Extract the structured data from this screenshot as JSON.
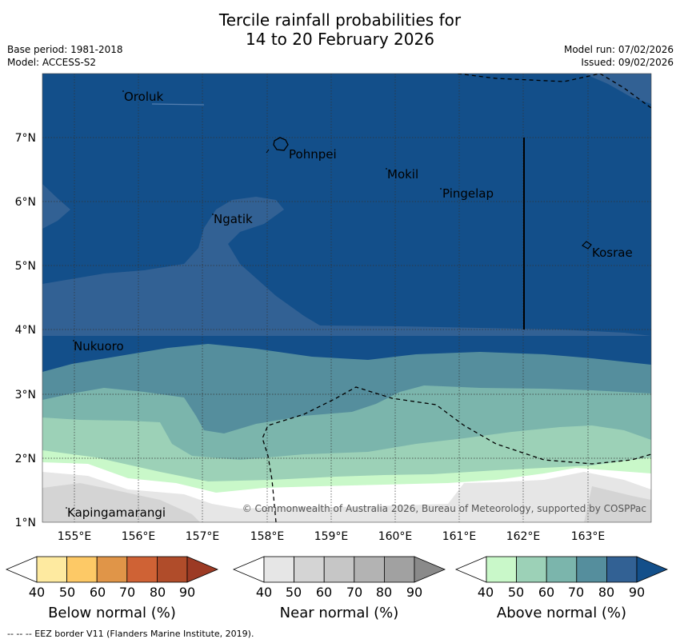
{
  "title": {
    "line1": "Tercile rainfall probabilities for",
    "line2": "14 to 20 February 2026"
  },
  "meta": {
    "base_period": "Base period: 1981-2018",
    "model": "Model: ACCESS-S2",
    "model_run": "Model run: 07/02/2026",
    "issued": "Issued: 09/02/2026"
  },
  "axes": {
    "lon_labels": [
      "155°E",
      "156°E",
      "157°E",
      "158°E",
      "159°E",
      "160°E",
      "161°E",
      "162°E",
      "163°E"
    ],
    "lat_labels": [
      "7°N",
      "6°N",
      "5°N",
      "4°N",
      "3°N",
      "2°N",
      "1°N"
    ]
  },
  "places": [
    {
      "name": "Oroluk"
    },
    {
      "name": "Pohnpei"
    },
    {
      "name": "Mokil"
    },
    {
      "name": "Pingelap"
    },
    {
      "name": "Ngatik"
    },
    {
      "name": "Kosrae"
    },
    {
      "name": "Nukuoro"
    },
    {
      "name": "Kapingamarangi"
    }
  ],
  "copyright": "© Commonwealth of Australia 2026, Bureau of Meteorology, supported by COSPPac",
  "colorbars": [
    {
      "caption": "Below normal (%)",
      "ticks": [
        "40",
        "50",
        "60",
        "70",
        "80",
        "90"
      ],
      "colors": [
        "#ffffff",
        "#feeaa0",
        "#fdc966",
        "#e09548",
        "#cf6235",
        "#b04c2a",
        "#9c3a24"
      ]
    },
    {
      "caption": "Near normal (%)",
      "ticks": [
        "40",
        "50",
        "60",
        "70",
        "80",
        "90"
      ],
      "colors": [
        "#ffffff",
        "#e6e6e6",
        "#d4d4d4",
        "#c6c6c6",
        "#b3b3b3",
        "#a1a1a1",
        "#8a8a8a"
      ]
    },
    {
      "caption": "Above normal (%)",
      "ticks": [
        "40",
        "50",
        "60",
        "70",
        "80",
        "90"
      ],
      "colors": [
        "#ffffff",
        "#c9f8c9",
        "#9cd1b7",
        "#7bb5ac",
        "#558e9d",
        "#326194",
        "#134f8a"
      ]
    }
  ],
  "footer": "--  --  -- EEZ border V11 (Flanders Marine Institute, 2019)."
}
